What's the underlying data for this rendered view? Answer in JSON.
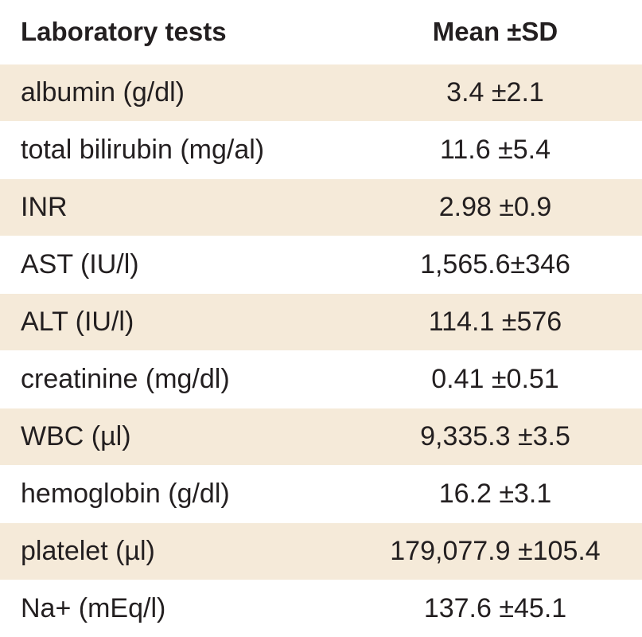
{
  "table": {
    "headers": {
      "test": "Laboratory tests",
      "value": "Mean ±SD"
    },
    "rows": [
      {
        "test": "albumin (g/dl)",
        "value": "3.4 ±2.1"
      },
      {
        "test": "total bilirubin (mg/al)",
        "value": "11.6 ±5.4"
      },
      {
        "test": "INR",
        "value": "2.98 ±0.9"
      },
      {
        "test": "AST (IU/l)",
        "value": "1,565.6±346"
      },
      {
        "test": "ALT (IU/l)",
        "value": "114.1 ±576"
      },
      {
        "test": "creatinine (mg/dl)",
        "value": "0.41 ±0.51"
      },
      {
        "test": "WBC (µl)",
        "value": "9,335.3 ±3.5"
      },
      {
        "test": "hemoglobin (g/dl)",
        "value": "16.2 ±3.1"
      },
      {
        "test": "platelet (µl)",
        "value": "179,077.9 ±105.4"
      },
      {
        "test": "Na+ (mEq/l)",
        "value": "137.6 ±45.1"
      }
    ],
    "colors": {
      "stripe": "#f5ead9",
      "text": "#231f20"
    }
  }
}
